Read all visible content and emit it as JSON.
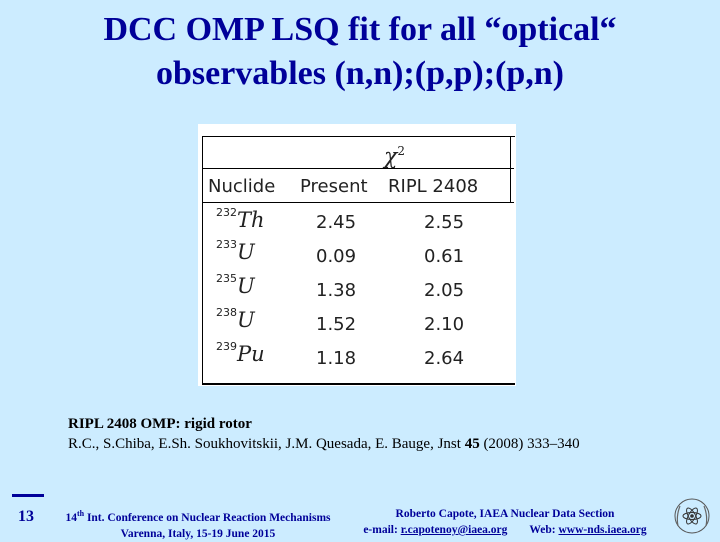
{
  "title": {
    "line1": "DCC OMP LSQ fit for all “optical“",
    "line2": "observables (n,n);(p,p);(p,n)"
  },
  "table": {
    "group_header_symbol": "χ",
    "group_header_exp": "2",
    "columns": [
      "Nuclide",
      "Present",
      "RIPL 2408"
    ],
    "rows": [
      {
        "mass": "232",
        "symbol": "Th",
        "present": "2.45",
        "ripl": "2.55"
      },
      {
        "mass": "233",
        "symbol": "U",
        "present": "0.09",
        "ripl": "0.61"
      },
      {
        "mass": "235",
        "symbol": "U",
        "present": "1.38",
        "ripl": "2.05"
      },
      {
        "mass": "238",
        "symbol": "U",
        "present": "1.52",
        "ripl": "2.10"
      },
      {
        "mass": "239",
        "symbol": "Pu",
        "present": "1.18",
        "ripl": "2.64"
      }
    ]
  },
  "reference": {
    "line1": "RIPL 2408 OMP: rigid rotor",
    "line2_pre": "R.C., S.Chiba, E.Sh. Soukhovitskii, J.M. Quesada, E. Bauge, Jnst ",
    "line2_vol": "45",
    "line2_post": " (2008) 333–340"
  },
  "footer": {
    "page_number": "13",
    "conf_ordinal": "14",
    "conf_ordinal_suffix": "th",
    "conf_line1_rest": " Int. Conference on Nuclear Reaction Mechanisms",
    "conf_line2": "Varenna, Italy, 15-19 June 2015",
    "author_line1": "Roberto Capote, IAEA Nuclear Data Section",
    "email_label": "e-mail: ",
    "email": "r.capotenoy@iaea.org",
    "web_label": "Web: ",
    "web": "www-nds.iaea.org"
  },
  "colors": {
    "background": "#ccecff",
    "accent": "#000099"
  }
}
